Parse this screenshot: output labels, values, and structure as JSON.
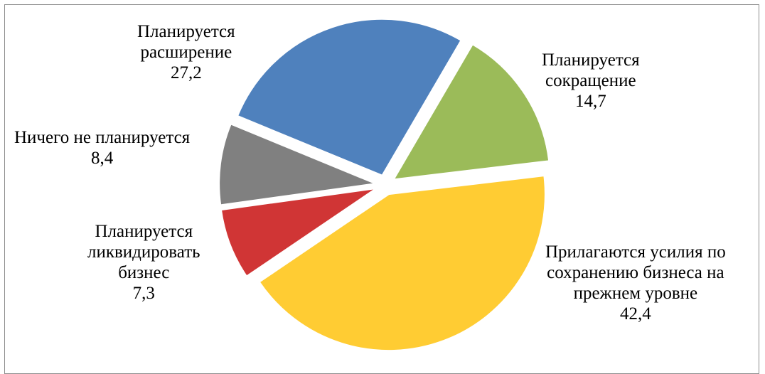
{
  "chart_data": {
    "type": "pie",
    "start_angle_deg": 30.3,
    "slices": [
      {
        "name": "Планируется сокращение",
        "value": 14.7,
        "color": "#9bbb59"
      },
      {
        "name": "Прилагаются усилия по сохранению бизнеса на прежнем уровне",
        "value": 42.4,
        "color": "#ffcc33"
      },
      {
        "name": "Планируется ликвидировать бизнес",
        "value": 7.3,
        "color": "#d03535"
      },
      {
        "name": "Ничего не планируется",
        "value": 8.4,
        "color": "#808080"
      },
      {
        "name": "Планируется расширение",
        "value": 27.2,
        "color": "#4f81bd"
      }
    ],
    "labels": {
      "sokr": {
        "line1": "Планируется",
        "line2": "сокращение",
        "value": "14,7"
      },
      "sokhr": {
        "line1": "Прилагаются усилия по",
        "line2": "сохранению бизнеса на",
        "line3": "прежнем уровне",
        "value": "42,4"
      },
      "likv": {
        "line1": "Планируется",
        "line2": "ликвидировать",
        "line3": "бизнес",
        "value": "7,3"
      },
      "nichego": {
        "line1": "Ничего не планируется",
        "value": "8,4"
      },
      "rassh": {
        "line1": "Планируется",
        "line2": "расширение",
        "value": "27,2"
      }
    }
  }
}
